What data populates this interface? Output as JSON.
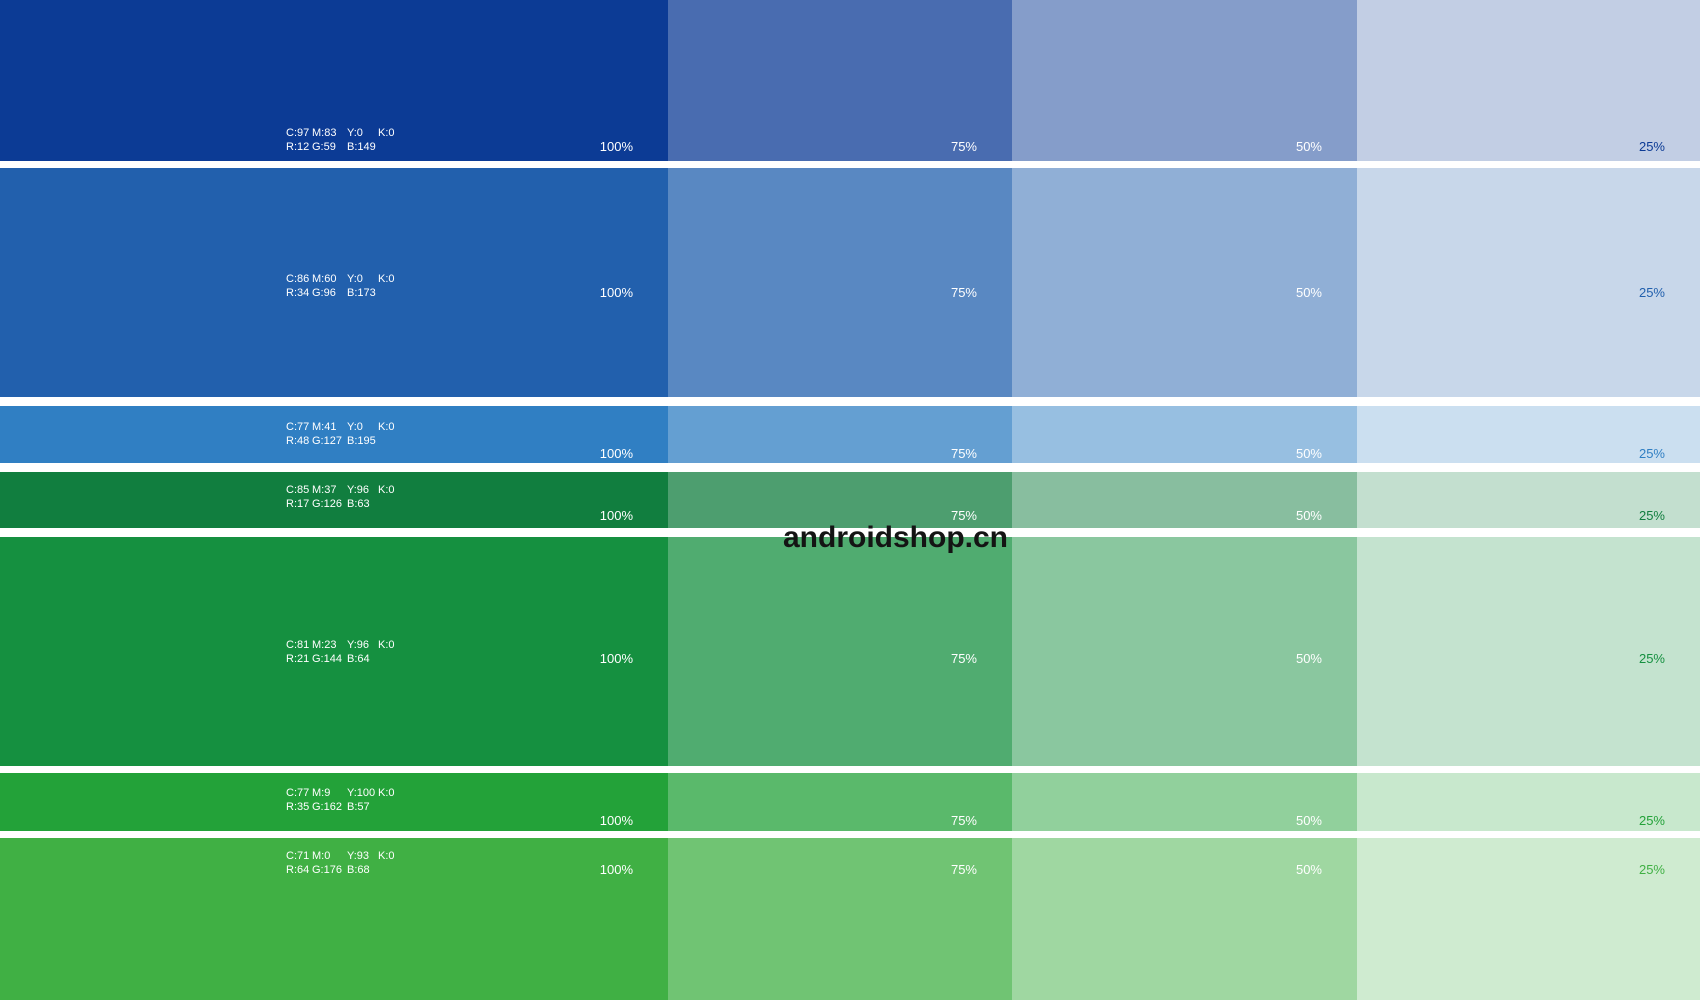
{
  "palette": {
    "watermark": "androidshop.cn",
    "tint_labels": [
      "100%",
      "75%",
      "50%",
      "25%"
    ],
    "tint_opacities": [
      1,
      0.75,
      0.5,
      0.25
    ],
    "rows": [
      {
        "hex": "#0C3B95",
        "cmyk": [
          "C:97",
          "M:83",
          "Y:0",
          "K:0"
        ],
        "rgb": [
          "R:12",
          "G:59",
          "B:149"
        ]
      },
      {
        "hex": "#2260AD",
        "cmyk": [
          "C:86",
          "M:60",
          "Y:0",
          "K:0"
        ],
        "rgb": [
          "R:34",
          "G:96",
          "B:173"
        ]
      },
      {
        "hex": "#307FC3",
        "cmyk": [
          "C:77",
          "M:41",
          "Y:0",
          "K:0"
        ],
        "rgb": [
          "R:48",
          "G:127",
          "B:195"
        ]
      },
      {
        "hex": "#117E3F",
        "cmyk": [
          "C:85",
          "M:37",
          "Y:96",
          "K:0"
        ],
        "rgb": [
          "R:17",
          "G:126",
          "B:63"
        ]
      },
      {
        "hex": "#159040",
        "cmyk": [
          "C:81",
          "M:23",
          "Y:96",
          "K:0"
        ],
        "rgb": [
          "R:21",
          "G:144",
          "B:64"
        ]
      },
      {
        "hex": "#23A239",
        "cmyk": [
          "C:77",
          "M:9",
          "Y:100",
          "K:0"
        ],
        "rgb": [
          "R:35",
          "G:162",
          "B:57"
        ]
      },
      {
        "hex": "#40B044",
        "cmyk": [
          "C:71",
          "M:0",
          "Y:93",
          "K:0"
        ],
        "rgb": [
          "R:64",
          "G:176",
          "B:68"
        ]
      }
    ]
  }
}
